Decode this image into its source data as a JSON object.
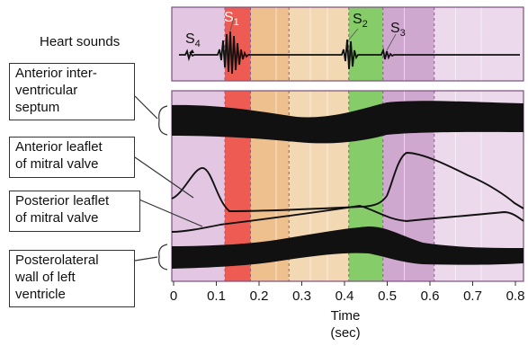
{
  "heart_sounds_label": "Heart sounds",
  "sound_labels": [
    {
      "id": "s4",
      "text": "S",
      "sub": "4"
    },
    {
      "id": "s1",
      "text": "S",
      "sub": "1"
    },
    {
      "id": "s2",
      "text": "S",
      "sub": "2"
    },
    {
      "id": "s3",
      "text": "S",
      "sub": "3"
    }
  ],
  "callouts": [
    {
      "id": "septum",
      "lines": [
        "Anterior inter-",
        "ventricular",
        "septum"
      ]
    },
    {
      "id": "anterior-leaflet",
      "lines": [
        "Anterior leaflet",
        "of mitral valve"
      ]
    },
    {
      "id": "posterior-leaflet",
      "lines": [
        "Posterior leaflet",
        "of mitral valve"
      ]
    },
    {
      "id": "posterolateral-wall",
      "lines": [
        "Posterolateral",
        "wall of left",
        "ventricle"
      ]
    }
  ],
  "axis": {
    "ticks": [
      "0",
      "0.1",
      "0.2",
      "0.3",
      "0.4",
      "0.5",
      "0.6",
      "0.7",
      "0.8"
    ],
    "label_line1": "Time",
    "label_line2": "(sec)",
    "min": 0,
    "max": 0.82
  },
  "phases": [
    {
      "name": "atrial-systole",
      "start": 0.0,
      "end": 0.12,
      "color": "#e3c7e2"
    },
    {
      "name": "isovolumic-contraction",
      "start": 0.12,
      "end": 0.18,
      "color": "#ee5b52"
    },
    {
      "name": "rapid-ejection",
      "start": 0.18,
      "end": 0.27,
      "color": "#eec08e"
    },
    {
      "name": "reduced-ejection",
      "start": 0.27,
      "end": 0.41,
      "color": "#f3d8b4"
    },
    {
      "name": "isovolumic-relaxation",
      "start": 0.41,
      "end": 0.49,
      "color": "#86cc68"
    },
    {
      "name": "rapid-filling",
      "start": 0.49,
      "end": 0.61,
      "color": "#cfa8cf"
    },
    {
      "name": "diastasis",
      "start": 0.61,
      "end": 0.82,
      "color": "#ecdaec"
    }
  ],
  "colors": {
    "border": "#7a4f7e",
    "trace": "#111111",
    "band": "#111111",
    "dash": "#8a5c8a"
  }
}
